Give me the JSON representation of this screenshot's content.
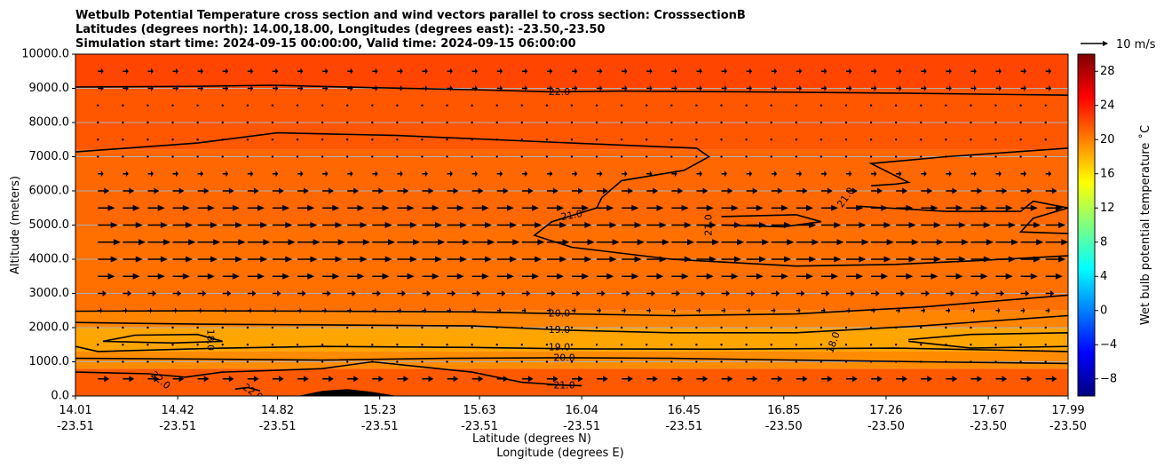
{
  "chart_data": {
    "type": "contour",
    "title_lines": [
      "Wetbulb Potential Temperature cross section and wind vectors parallel to cross section: CrosssectionB",
      "Latitudes (degrees north): 14.00,18.00, Longitudes (degrees east): -23.50,-23.50",
      "Simulation start time: 2024-09-15 00:00:00, Valid time: 2024-09-15 06:00:00"
    ],
    "ylabel": "Altitude (meters)",
    "xlabel_lat": "Latitude (degrees N)",
    "xlabel_lon": "Longitude (degrees E)",
    "ylim": [
      0,
      10000
    ],
    "y_ticks": [
      {
        "value": 0,
        "label": "0.0"
      },
      {
        "value": 1000,
        "label": "1000.0"
      },
      {
        "value": 2000,
        "label": "2000.0"
      },
      {
        "value": 3000,
        "label": "3000.0"
      },
      {
        "value": 4000,
        "label": "4000.0"
      },
      {
        "value": 5000,
        "label": "5000.0"
      },
      {
        "value": 6000,
        "label": "6000.0"
      },
      {
        "value": 7000,
        "label": "7000.0"
      },
      {
        "value": 8000,
        "label": "8000.0"
      },
      {
        "value": 9000,
        "label": "9000.0"
      },
      {
        "value": 10000,
        "label": "10000.0"
      }
    ],
    "xlim": [
      14.01,
      17.99
    ],
    "x_ticks": [
      {
        "lat": 14.01,
        "lat_label": "14.01",
        "lon_label": "-23.51"
      },
      {
        "lat": 14.42,
        "lat_label": "14.42",
        "lon_label": "-23.51"
      },
      {
        "lat": 14.82,
        "lat_label": "14.82",
        "lon_label": "-23.51"
      },
      {
        "lat": 15.23,
        "lat_label": "15.23",
        "lon_label": "-23.51"
      },
      {
        "lat": 15.63,
        "lat_label": "15.63",
        "lon_label": "-23.51"
      },
      {
        "lat": 16.04,
        "lat_label": "16.04",
        "lon_label": "-23.51"
      },
      {
        "lat": 16.45,
        "lat_label": "16.45",
        "lon_label": "-23.51"
      },
      {
        "lat": 16.85,
        "lat_label": "16.85",
        "lon_label": "-23.50"
      },
      {
        "lat": 17.26,
        "lat_label": "17.26",
        "lon_label": "-23.50"
      },
      {
        "lat": 17.67,
        "lat_label": "17.67",
        "lon_label": "-23.50"
      },
      {
        "lat": 17.99,
        "lat_label": "17.99",
        "lon_label": "-23.50"
      }
    ],
    "grid": "horizontal",
    "colorbar": {
      "label": "Wet bulb potential temperature ˚C",
      "range": [
        -10,
        30
      ],
      "ticks": [
        {
          "value": -8,
          "label": "−8"
        },
        {
          "value": -4,
          "label": "−4"
        },
        {
          "value": 0,
          "label": "0"
        },
        {
          "value": 4,
          "label": "4"
        },
        {
          "value": 8,
          "label": "8"
        },
        {
          "value": 12,
          "label": "12"
        },
        {
          "value": 16,
          "label": "16"
        },
        {
          "value": 20,
          "label": "20"
        },
        {
          "value": 24,
          "label": "24"
        },
        {
          "value": 28,
          "label": "28"
        }
      ],
      "colormap": [
        "#00007f",
        "#0000ff",
        "#007fff",
        "#00ffff",
        "#7fff7f",
        "#ffff00",
        "#ff7f00",
        "#ff0000",
        "#7f0000"
      ]
    },
    "vector_key": {
      "label": "10 m/s",
      "speed": 10
    },
    "fill_bands": [
      {
        "y0": 0,
        "y1": 800,
        "value": 21.5
      },
      {
        "y0": 800,
        "y1": 1300,
        "value": 19.5
      },
      {
        "y0": 1300,
        "y1": 2000,
        "value": 18.5
      },
      {
        "y0": 2000,
        "y1": 2500,
        "value": 19.8
      },
      {
        "y0": 2500,
        "y1": 5000,
        "value": 20.6
      },
      {
        "y0": 5000,
        "y1": 7200,
        "value": 20.9
      },
      {
        "y0": 7200,
        "y1": 9000,
        "value": 21.6
      },
      {
        "y0": 9000,
        "y1": 10000,
        "value": 22.3
      }
    ],
    "contours": [
      {
        "label": "22.0",
        "label_at": [
          15.95,
          8880
        ],
        "label_angle": 0,
        "points": [
          [
            14.01,
            9040
          ],
          [
            14.5,
            9060
          ],
          [
            14.8,
            9090
          ],
          [
            15.2,
            9020
          ],
          [
            15.6,
            8960
          ],
          [
            15.92,
            8900
          ],
          [
            16.2,
            8920
          ],
          [
            16.7,
            8900
          ],
          [
            17.3,
            8860
          ],
          [
            17.99,
            8800
          ]
        ]
      },
      {
        "label": "21.0",
        "label_at": [
          16.0,
          5270
        ],
        "label_angle": -10,
        "points": [
          [
            14.01,
            7140
          ],
          [
            14.5,
            7400
          ],
          [
            14.82,
            7700
          ],
          [
            15.3,
            7620
          ],
          [
            16.0,
            7400
          ],
          [
            16.5,
            7250
          ],
          [
            16.55,
            7000
          ],
          [
            16.45,
            6600
          ],
          [
            16.2,
            6300
          ],
          [
            16.12,
            5800
          ],
          [
            16.1,
            5500
          ],
          [
            15.92,
            5100
          ],
          [
            15.85,
            4700
          ],
          [
            16.0,
            4350
          ],
          [
            16.4,
            4000
          ],
          [
            16.9,
            3800
          ],
          [
            17.3,
            3850
          ],
          [
            17.6,
            3950
          ],
          [
            17.99,
            4100
          ]
        ]
      },
      {
        "label": "21.0",
        "label_at": [
          16.55,
          5000
        ],
        "label_angle": -90,
        "points": [
          [
            16.6,
            5250
          ],
          [
            16.9,
            5300
          ],
          [
            17.0,
            5100
          ],
          [
            16.85,
            4950
          ],
          [
            16.6,
            5000
          ]
        ]
      },
      {
        "label": "21.0",
        "label_at": [
          17.1,
          5800
        ],
        "label_angle": -55,
        "points": [
          [
            17.2,
            6150
          ],
          [
            17.3,
            6200
          ],
          [
            17.35,
            6250
          ],
          [
            17.2,
            6800
          ],
          [
            17.5,
            7000
          ],
          [
            17.99,
            7250
          ]
        ]
      },
      {
        "label": "",
        "label_at": null,
        "label_angle": 0,
        "points": [
          [
            17.15,
            5550
          ],
          [
            17.5,
            5400
          ],
          [
            17.8,
            5400
          ],
          [
            17.85,
            5700
          ],
          [
            17.99,
            5500
          ],
          [
            17.85,
            5200
          ],
          [
            17.8,
            4800
          ],
          [
            17.99,
            4750
          ]
        ]
      },
      {
        "label": "20.0",
        "label_at": [
          15.95,
          2400
        ],
        "label_angle": 0,
        "points": [
          [
            14.01,
            2480
          ],
          [
            14.5,
            2490
          ],
          [
            15.0,
            2480
          ],
          [
            15.6,
            2460
          ],
          [
            16.0,
            2400
          ],
          [
            16.4,
            2350
          ],
          [
            16.9,
            2400
          ],
          [
            17.4,
            2600
          ],
          [
            17.99,
            2950
          ]
        ]
      },
      {
        "label": "19.0",
        "label_at": [
          15.95,
          1920
        ],
        "label_angle": 0,
        "points": [
          [
            14.01,
            2150
          ],
          [
            14.5,
            2100
          ],
          [
            15.0,
            2080
          ],
          [
            15.6,
            2050
          ],
          [
            16.0,
            1920
          ],
          [
            16.4,
            1850
          ],
          [
            16.9,
            1850
          ],
          [
            17.4,
            2050
          ],
          [
            17.99,
            2350
          ]
        ]
      },
      {
        "label": "18.0",
        "label_at": [
          14.55,
          1640
        ],
        "label_angle": 90,
        "points": [
          [
            14.12,
            1600
          ],
          [
            14.25,
            1780
          ],
          [
            14.5,
            1800
          ],
          [
            14.6,
            1600
          ],
          [
            14.4,
            1550
          ],
          [
            14.12,
            1600
          ]
        ]
      },
      {
        "label": "18.0",
        "label_at": [
          17.05,
          1560
        ],
        "label_angle": -70,
        "points": [
          [
            17.35,
            1650
          ],
          [
            17.6,
            1800
          ],
          [
            17.99,
            1850
          ],
          [
            17.99,
            1450
          ],
          [
            17.6,
            1400
          ],
          [
            17.35,
            1600
          ]
        ]
      },
      {
        "label": "19.0",
        "label_at": [
          15.95,
          1420
        ],
        "label_angle": 0,
        "points": [
          [
            14.01,
            1450
          ],
          [
            14.1,
            1300
          ],
          [
            14.6,
            1400
          ],
          [
            15.0,
            1450
          ],
          [
            15.6,
            1420
          ],
          [
            16.0,
            1380
          ],
          [
            16.6,
            1370
          ],
          [
            17.3,
            1400
          ],
          [
            17.99,
            1300
          ]
        ]
      },
      {
        "label": "20.0",
        "label_at": [
          15.97,
          1100
        ],
        "label_angle": 0,
        "points": [
          [
            14.01,
            1100
          ],
          [
            14.5,
            1080
          ],
          [
            15.0,
            1050
          ],
          [
            15.5,
            1100
          ],
          [
            15.97,
            1120
          ],
          [
            16.4,
            1100
          ],
          [
            16.9,
            1050
          ],
          [
            17.4,
            1000
          ],
          [
            17.99,
            950
          ]
        ]
      },
      {
        "label": "22.0",
        "label_at": [
          14.35,
          450
        ],
        "label_angle": 40,
        "points": [
          [
            14.01,
            700
          ],
          [
            14.3,
            650
          ],
          [
            14.45,
            550
          ],
          [
            14.6,
            700
          ],
          [
            14.82,
            750
          ],
          [
            15.0,
            800
          ],
          [
            15.2,
            1000
          ],
          [
            15.4,
            850
          ],
          [
            15.6,
            700
          ],
          [
            15.8,
            400
          ],
          [
            15.9,
            350
          ],
          [
            16.0,
            300
          ]
        ]
      },
      {
        "label": "22.0",
        "label_at": [
          14.72,
          100
        ],
        "label_angle": 35,
        "points": [
          [
            14.65,
            200
          ],
          [
            14.7,
            250
          ],
          [
            14.75,
            150
          ]
        ]
      },
      {
        "label": "21.0",
        "label_at": [
          15.97,
          300
        ],
        "label_angle": 0,
        "points": [
          [
            15.9,
            330
          ],
          [
            16.04,
            300
          ]
        ]
      }
    ],
    "terrain": {
      "points": [
        [
          14.9,
          0
        ],
        [
          15.0,
          150
        ],
        [
          15.1,
          200
        ],
        [
          15.2,
          120
        ],
        [
          15.3,
          0
        ]
      ]
    },
    "wind_vectors": {
      "x_cols": [
        14.1,
        14.2,
        14.3,
        14.4,
        14.5,
        14.6,
        14.7,
        14.8,
        14.9,
        15.0,
        15.1,
        15.2,
        15.3,
        15.4,
        15.5,
        15.6,
        15.7,
        15.8,
        15.9,
        16.0,
        16.1,
        16.2,
        16.3,
        16.4,
        16.5,
        16.6,
        16.7,
        16.8,
        16.9,
        17.0,
        17.1,
        17.2,
        17.3,
        17.4,
        17.5,
        17.6,
        17.7,
        17.8,
        17.9
      ],
      "rows": [
        {
          "y": 500,
          "u": 4
        },
        {
          "y": 1000,
          "u": 0.5
        },
        {
          "y": 1500,
          "u": 0.5
        },
        {
          "y": 2000,
          "u": 0.5
        },
        {
          "y": 2500,
          "u": 1.5
        },
        {
          "y": 3000,
          "u": 3
        },
        {
          "y": 3500,
          "u": 6
        },
        {
          "y": 4000,
          "u": 7
        },
        {
          "y": 4500,
          "u": 8
        },
        {
          "y": 5000,
          "u": 7
        },
        {
          "y": 5500,
          "u": 6
        },
        {
          "y": 6000,
          "u": 4
        },
        {
          "y": 6500,
          "u": 2
        },
        {
          "y": 7000,
          "u": 1
        },
        {
          "y": 7500,
          "u": 1
        },
        {
          "y": 8000,
          "u": 1
        },
        {
          "y": 8500,
          "u": 1
        },
        {
          "y": 9000,
          "u": 2
        },
        {
          "y": 9500,
          "u": 2
        }
      ]
    }
  }
}
